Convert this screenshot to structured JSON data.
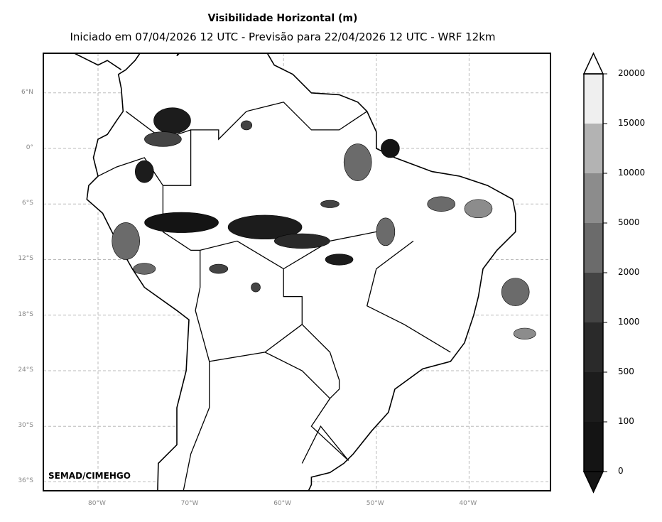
{
  "header": {
    "title": "Visibilidade Horizontal (m)",
    "subtitle": "Iniciado em 07/04/2026 12 UTC - Previsão para 22/04/2026 12 UTC - WRF 12km"
  },
  "credit": "SEMAD/CIMEHGO",
  "axes": {
    "lon_labels": [
      "80°W",
      "70°W",
      "60°W",
      "50°W",
      "40°W"
    ],
    "lon_values": [
      -80,
      -70,
      -60,
      -50,
      -40
    ],
    "lat_labels": [
      "6°N",
      "0°",
      "6°S",
      "12°S",
      "18°S",
      "24°S",
      "30°S",
      "36°S"
    ],
    "lat_values": [
      6,
      0,
      -6,
      -12,
      -18,
      -24,
      -30,
      -36
    ],
    "lon_range": [
      -85.9,
      -31.2
    ],
    "lat_range": [
      -37.0,
      10.3
    ]
  },
  "colorbar": {
    "levels": [
      "0",
      "100",
      "500",
      "1000",
      "2000",
      "5000",
      "10000",
      "15000",
      "20000"
    ],
    "colors": [
      "#141414",
      "#1c1c1c",
      "#2a2a2a",
      "#444444",
      "#6b6b6b",
      "#8c8c8c",
      "#b3b3b3",
      "#efefef"
    ],
    "extend": "both"
  }
}
